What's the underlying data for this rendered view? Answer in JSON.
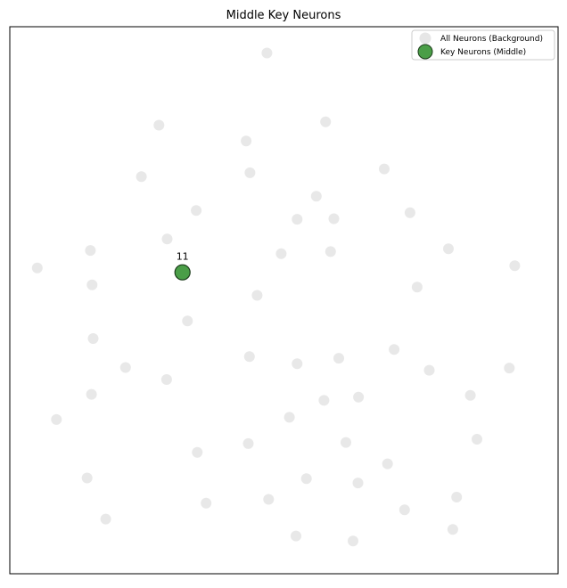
{
  "chart_data": {
    "type": "scatter",
    "title": "Middle Key Neurons",
    "xlabel": "",
    "ylabel": "",
    "axes_visible": false,
    "grid": false,
    "legend_placement": "top-right",
    "colors": {
      "background_points": "#e6e6e6",
      "key_points": "#4a9e47",
      "key_edge": "#1d3d1c",
      "frame": "#000000"
    },
    "xlim": [
      0,
      100
    ],
    "ylim": [
      0,
      100
    ],
    "series": [
      {
        "name": "All Neurons (Background)",
        "points": [
          [
            46.9,
            95.2
          ],
          [
            27.2,
            82.0
          ],
          [
            57.6,
            82.6
          ],
          [
            43.1,
            79.1
          ],
          [
            24.0,
            72.6
          ],
          [
            43.8,
            73.3
          ],
          [
            68.3,
            74.0
          ],
          [
            55.9,
            69.0
          ],
          [
            34.0,
            66.4
          ],
          [
            52.4,
            64.8
          ],
          [
            59.1,
            64.9
          ],
          [
            73.0,
            66.0
          ],
          [
            28.7,
            61.2
          ],
          [
            14.7,
            59.1
          ],
          [
            80.0,
            59.4
          ],
          [
            49.5,
            58.5
          ],
          [
            58.5,
            58.9
          ],
          [
            5.0,
            55.9
          ],
          [
            92.1,
            56.3
          ],
          [
            15.0,
            52.8
          ],
          [
            74.3,
            52.4
          ],
          [
            45.1,
            50.9
          ],
          [
            32.4,
            46.2
          ],
          [
            15.2,
            43.0
          ],
          [
            70.1,
            41.0
          ],
          [
            43.7,
            39.7
          ],
          [
            60.0,
            39.4
          ],
          [
            21.1,
            37.7
          ],
          [
            52.4,
            38.4
          ],
          [
            76.5,
            37.2
          ],
          [
            91.1,
            37.6
          ],
          [
            28.6,
            35.5
          ],
          [
            14.9,
            32.8
          ],
          [
            57.3,
            31.7
          ],
          [
            63.6,
            32.3
          ],
          [
            84.0,
            32.6
          ],
          [
            8.5,
            28.2
          ],
          [
            51.0,
            28.6
          ],
          [
            43.5,
            23.8
          ],
          [
            61.3,
            24.0
          ],
          [
            85.2,
            24.6
          ],
          [
            34.2,
            22.2
          ],
          [
            68.9,
            20.1
          ],
          [
            14.1,
            17.5
          ],
          [
            54.1,
            17.4
          ],
          [
            63.5,
            16.6
          ],
          [
            81.5,
            14.0
          ],
          [
            35.8,
            12.9
          ],
          [
            47.2,
            13.6
          ],
          [
            72.0,
            11.7
          ],
          [
            17.5,
            10.0
          ],
          [
            80.8,
            8.1
          ],
          [
            52.2,
            6.9
          ],
          [
            62.6,
            6.0
          ]
        ]
      },
      {
        "name": "Key Neurons (Middle)",
        "points": [
          [
            31.5,
            55.1
          ]
        ],
        "labels": [
          "11"
        ]
      }
    ]
  }
}
